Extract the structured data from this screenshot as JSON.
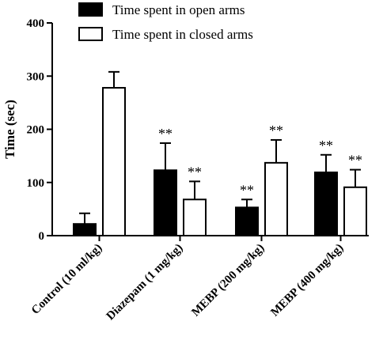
{
  "chart_data": {
    "type": "bar",
    "title": "",
    "xlabel": "",
    "ylabel": "Time (sec)",
    "ylim": [
      0,
      400
    ],
    "yticks": [
      0,
      100,
      200,
      300,
      400
    ],
    "grid": false,
    "legend_position": "top",
    "categories": [
      "Control (10 ml/kg)",
      "Diazepam (1 mg/kg)",
      "MEBP (200 mg/kg)",
      "MEBP (400 mg/kg)"
    ],
    "series": [
      {
        "name": "Time spent in open arms",
        "fill": "#000000",
        "values": [
          22,
          123,
          53,
          119
        ],
        "error": [
          20,
          51,
          15,
          33
        ],
        "annotations": [
          "",
          "**",
          "**",
          "**"
        ]
      },
      {
        "name": "Time spent in closed arms",
        "fill": "#ffffff",
        "values": [
          278,
          68,
          137,
          91
        ],
        "error": [
          30,
          34,
          43,
          33
        ],
        "annotations": [
          "",
          "**",
          "**",
          "**"
        ]
      }
    ]
  }
}
